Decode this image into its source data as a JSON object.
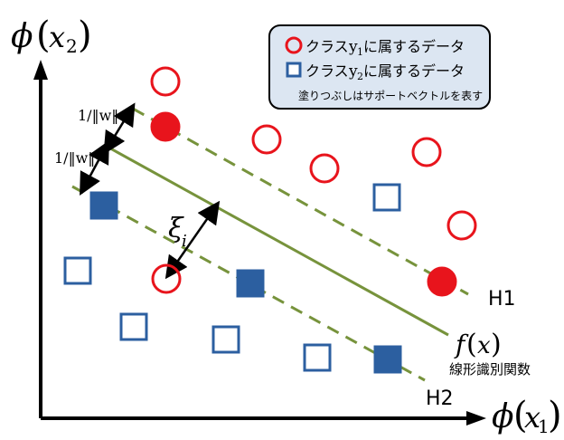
{
  "axes": {
    "y_label_fn": "ϕ",
    "y_label_var": "x",
    "y_label_sub": "2",
    "x_label_fn": "ϕ",
    "x_label_var": "x",
    "x_label_sub": "1"
  },
  "legend": {
    "class1_prefix": "クラス",
    "class1_var": "y",
    "class1_sub": "1",
    "class1_suffix": "に属するデータ",
    "class2_prefix": "クラス",
    "class2_var": "y",
    "class2_sub": "2",
    "class2_suffix": "に属するデータ",
    "note": "塗りつぶしはサポートベクトルを表す"
  },
  "labels": {
    "h1": "H1",
    "h2": "H2",
    "f_name": "f",
    "f_open": "(",
    "f_var": "x",
    "f_close": ")",
    "linear_fn": "線形識別関数",
    "margin_top": "1/‖w‖",
    "margin_bottom": "1/‖w‖",
    "xi_sym": "ξ",
    "xi_sub": "i"
  },
  "colors": {
    "class1": "#e8141c",
    "class2": "#2c5fa0",
    "boundary": "#77933c",
    "legend_bg": "#dce6f2",
    "axis": "#000000"
  }
}
